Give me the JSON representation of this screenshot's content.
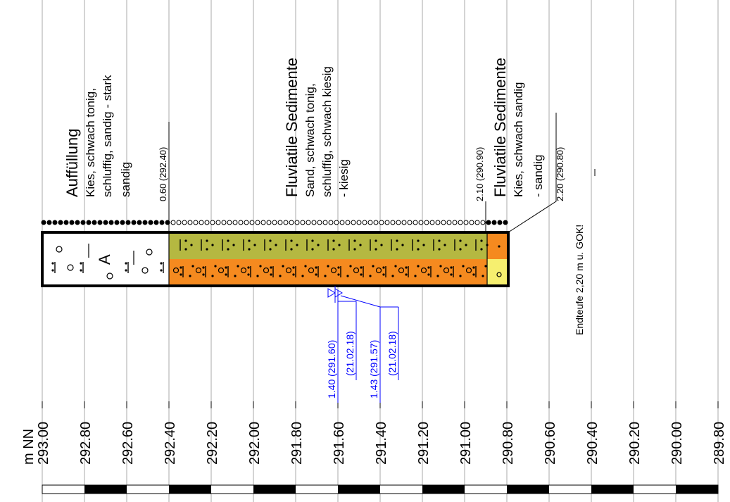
{
  "axis": {
    "unit_label": "m NN",
    "ticks": [
      "293.00",
      "292.80",
      "292.60",
      "292.40",
      "292.20",
      "292.00",
      "291.80",
      "291.60",
      "291.40",
      "291.20",
      "291.00",
      "290.80",
      "290.60",
      "290.40",
      "290.20",
      "290.00",
      "289.80"
    ],
    "range": [
      293.0,
      289.8
    ]
  },
  "boundaries": [
    {
      "depth": "0.60",
      "elevation": "(292.40)",
      "value": 292.4
    },
    {
      "depth": "2.10",
      "elevation": "(290.90)",
      "value": 290.9
    },
    {
      "depth": "2.20",
      "elevation": "(290.80)",
      "value": 290.8
    }
  ],
  "layers": [
    {
      "name": "Auffüllung",
      "desc_lines": [
        "Kies, schwach tonig,",
        "schluffig, sandig - stark",
        "sandig"
      ],
      "top": 293.0,
      "bottom": 292.4,
      "color_top": "#ffffff",
      "color_bottom": "#ffffff"
    },
    {
      "name": "Fluviatile Sedimente",
      "desc_lines": [
        "Sand, schwach tonig,",
        "schluffig, schwach kiesig",
        "- kiesig"
      ],
      "top": 292.4,
      "bottom": 290.9,
      "color_top": "#b5b841",
      "color_bottom": "#f58a1f"
    },
    {
      "name": "Fluviatile Sedimente",
      "desc_lines": [
        "Kies, schwach sandig",
        "- sandig"
      ],
      "top": 290.9,
      "bottom": 290.8,
      "color_top": "#f58a1f",
      "color_bottom": "#f6ef6f"
    }
  ],
  "water_levels": [
    {
      "depth": "1.40",
      "elevation": "(291.60)",
      "date": "(21.02.18)",
      "value": 291.6
    },
    {
      "depth": "1.43",
      "elevation": "(291.57)",
      "date": "(21.02.18)",
      "value": 291.57
    }
  ],
  "final_depth_note": "Endteufe 2,20 m u. GOK!",
  "colors": {
    "water": "#0000ff",
    "frame": "#000000",
    "grid": "#aaaaaa"
  }
}
